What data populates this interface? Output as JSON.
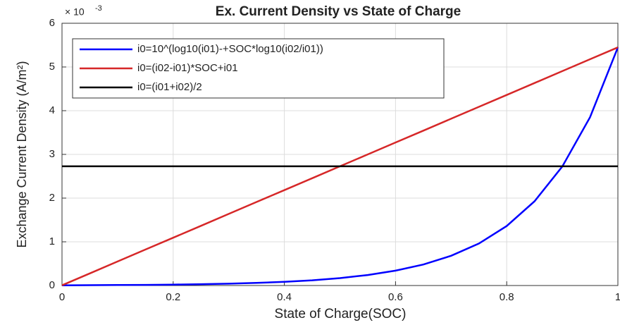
{
  "chart_data": {
    "type": "line",
    "title": "Ex. Current Density vs State of Charge",
    "x_label": "State of Charge(SOC)",
    "y_label": "Exchange Current Density (A/m²)",
    "y_multiplier": {
      "base": "× 10",
      "exponent": "-3"
    },
    "x": [
      0,
      0.05,
      0.1,
      0.15,
      0.2,
      0.25,
      0.3,
      0.35,
      0.4,
      0.45,
      0.5,
      0.55,
      0.6,
      0.65,
      0.7,
      0.75,
      0.8,
      0.85,
      0.9,
      0.95,
      1
    ],
    "series": [
      {
        "name": "i0=10^(log10(i01)-+SOC*log10(i02/i01))",
        "color": "#0000ff",
        "values": [
          0.0053,
          0.0075,
          0.0106,
          0.015,
          0.0212,
          0.03,
          0.0424,
          0.06,
          0.0849,
          0.12,
          0.17,
          0.24,
          0.34,
          0.481,
          0.68,
          0.962,
          1.361,
          1.925,
          2.723,
          3.852,
          5.449
        ]
      },
      {
        "name": "i0=(i02-i01)*SOC+i01",
        "color": "#d62728",
        "values": [
          0.0053,
          0.2775,
          0.5497,
          0.8219,
          1.094,
          1.366,
          1.639,
          1.911,
          2.183,
          2.455,
          2.727,
          3.0,
          3.272,
          3.544,
          3.816,
          4.088,
          4.36,
          4.633,
          4.905,
          5.177,
          5.449
        ]
      },
      {
        "name": "i0=(i01+i02)/2",
        "color": "#000000",
        "values": [
          2.727,
          2.727,
          2.727,
          2.727,
          2.727,
          2.727,
          2.727,
          2.727,
          2.727,
          2.727,
          2.727,
          2.727,
          2.727,
          2.727,
          2.727,
          2.727,
          2.727,
          2.727,
          2.727,
          2.727,
          2.727
        ]
      }
    ],
    "xlim": [
      0,
      1
    ],
    "xticks": [
      0,
      0.2,
      0.4,
      0.6,
      0.8,
      1
    ],
    "ylim": [
      0,
      6
    ],
    "yticks": [
      0,
      1,
      2,
      3,
      4,
      5,
      6
    ],
    "grid": true,
    "legend": "upper left"
  }
}
